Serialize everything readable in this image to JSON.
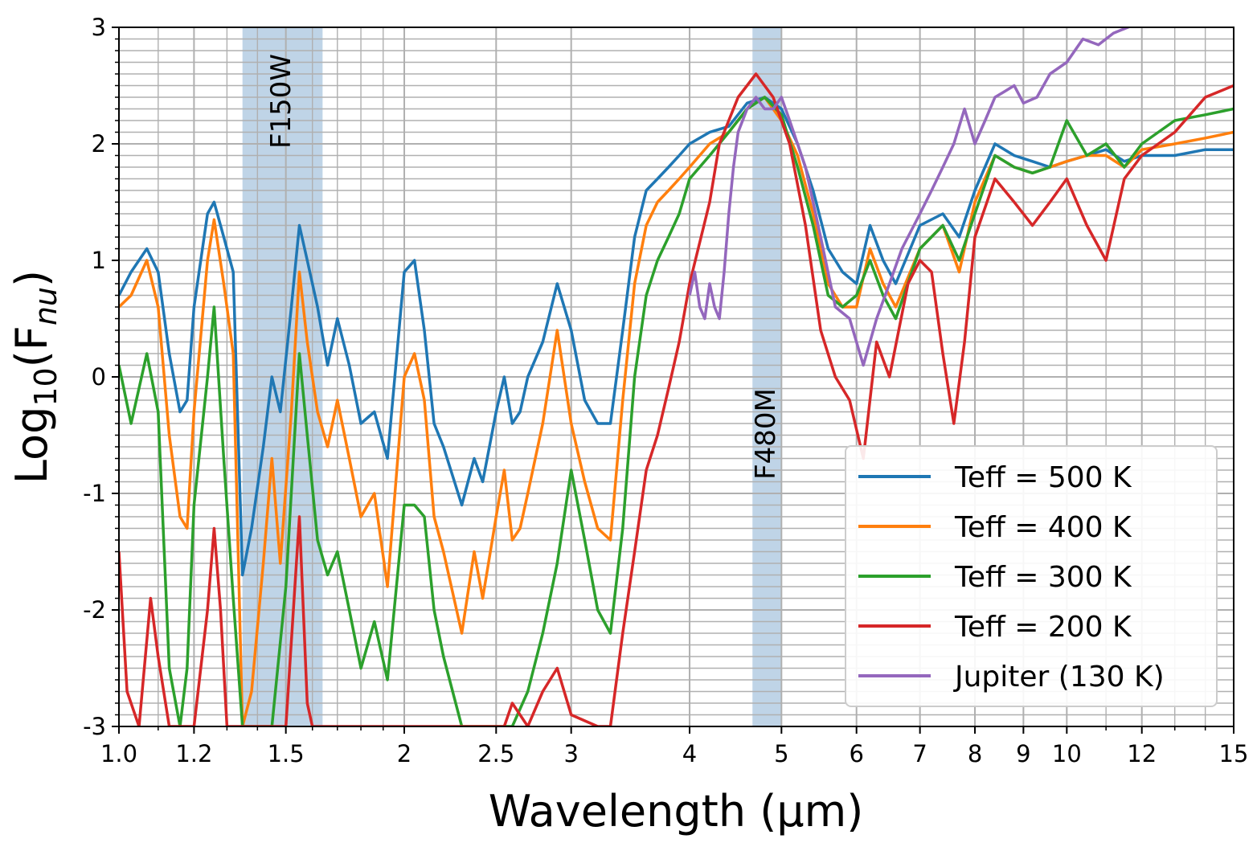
{
  "chart_data": {
    "type": "line",
    "xlabel": "Wavelength (μm)",
    "ylabel": "Log10(Fnu)",
    "x_scale": "log",
    "xlim": [
      1.0,
      15.0
    ],
    "ylim": [
      -3,
      3
    ],
    "grid": true,
    "x_ticks": [
      {
        "value": 1.0,
        "label": "1.0"
      },
      {
        "value": 1.2,
        "label": "1.2"
      },
      {
        "value": 1.5,
        "label": "1.5"
      },
      {
        "value": 2.0,
        "label": "2"
      },
      {
        "value": 2.5,
        "label": "2.5"
      },
      {
        "value": 3.0,
        "label": "3"
      },
      {
        "value": 4.0,
        "label": "4"
      },
      {
        "value": 5.0,
        "label": "5"
      },
      {
        "value": 6.0,
        "label": "6"
      },
      {
        "value": 7.0,
        "label": "7"
      },
      {
        "value": 8.0,
        "label": "8"
      },
      {
        "value": 9.0,
        "label": "9"
      },
      {
        "value": 10.0,
        "label": "10"
      },
      {
        "value": 12.0,
        "label": "12"
      },
      {
        "value": 15.0,
        "label": "15"
      }
    ],
    "y_ticks": [
      {
        "value": -3,
        "label": "-3"
      },
      {
        "value": -2,
        "label": "-2"
      },
      {
        "value": -1,
        "label": "-1"
      },
      {
        "value": 0,
        "label": "0"
      },
      {
        "value": 1,
        "label": "1"
      },
      {
        "value": 2,
        "label": "2"
      },
      {
        "value": 3,
        "label": "3"
      }
    ],
    "bands": [
      {
        "name": "F150W",
        "x_range": [
          1.35,
          1.64
        ],
        "color": "#a9c6df"
      },
      {
        "name": "F480M",
        "x_range": [
          4.66,
          5.0
        ],
        "color": "#a9c6df"
      }
    ],
    "legend_position": "lower-right",
    "series": [
      {
        "name": "Teff = 500 K",
        "color": "#1f77b4",
        "x": [
          1.0,
          1.03,
          1.07,
          1.1,
          1.13,
          1.16,
          1.18,
          1.2,
          1.24,
          1.26,
          1.29,
          1.32,
          1.35,
          1.38,
          1.42,
          1.45,
          1.48,
          1.52,
          1.55,
          1.58,
          1.62,
          1.66,
          1.7,
          1.75,
          1.8,
          1.86,
          1.92,
          2.0,
          2.05,
          2.1,
          2.15,
          2.2,
          2.3,
          2.37,
          2.42,
          2.5,
          2.55,
          2.6,
          2.65,
          2.7,
          2.8,
          2.9,
          3.0,
          3.1,
          3.2,
          3.3,
          3.4,
          3.5,
          3.6,
          3.7,
          3.8,
          3.9,
          4.0,
          4.2,
          4.4,
          4.6,
          4.8,
          5.0,
          5.2,
          5.4,
          5.6,
          5.8,
          6.0,
          6.2,
          6.4,
          6.6,
          7.0,
          7.4,
          7.7,
          8.0,
          8.4,
          8.8,
          9.2,
          9.6,
          10.0,
          10.5,
          11.0,
          11.5,
          12.0,
          13.0,
          14.0,
          15.0
        ],
        "y": [
          0.7,
          0.9,
          1.1,
          0.9,
          0.2,
          -0.3,
          -0.2,
          0.6,
          1.4,
          1.5,
          1.2,
          0.9,
          -1.7,
          -1.3,
          -0.6,
          0.0,
          -0.3,
          0.6,
          1.3,
          1.0,
          0.6,
          0.1,
          0.5,
          0.1,
          -0.4,
          -0.3,
          -0.7,
          0.9,
          1.0,
          0.4,
          -0.4,
          -0.6,
          -1.1,
          -0.7,
          -0.9,
          -0.3,
          0.0,
          -0.4,
          -0.3,
          0.0,
          0.3,
          0.8,
          0.4,
          -0.2,
          -0.4,
          -0.4,
          0.4,
          1.2,
          1.6,
          1.7,
          1.8,
          1.9,
          2.0,
          2.1,
          2.15,
          2.35,
          2.4,
          2.3,
          2.0,
          1.6,
          1.1,
          0.9,
          0.8,
          1.3,
          1.0,
          0.8,
          1.3,
          1.4,
          1.2,
          1.6,
          2.0,
          1.9,
          1.85,
          1.8,
          1.85,
          1.9,
          1.95,
          1.85,
          1.9,
          1.9,
          1.95,
          1.95
        ]
      },
      {
        "name": "Teff = 400 K",
        "color": "#ff7f0e",
        "x": [
          1.0,
          1.03,
          1.07,
          1.1,
          1.13,
          1.16,
          1.18,
          1.2,
          1.24,
          1.26,
          1.29,
          1.32,
          1.35,
          1.38,
          1.42,
          1.45,
          1.48,
          1.52,
          1.55,
          1.58,
          1.62,
          1.66,
          1.7,
          1.75,
          1.8,
          1.86,
          1.92,
          2.0,
          2.05,
          2.1,
          2.15,
          2.2,
          2.3,
          2.37,
          2.42,
          2.5,
          2.55,
          2.6,
          2.65,
          2.7,
          2.8,
          2.9,
          3.0,
          3.1,
          3.2,
          3.3,
          3.4,
          3.5,
          3.6,
          3.7,
          3.8,
          3.9,
          4.0,
          4.2,
          4.4,
          4.6,
          4.8,
          5.0,
          5.2,
          5.4,
          5.6,
          5.8,
          6.0,
          6.2,
          6.4,
          6.6,
          7.0,
          7.4,
          7.7,
          8.0,
          8.4,
          8.8,
          9.2,
          9.6,
          10.0,
          10.5,
          11.0,
          11.5,
          12.0,
          13.0,
          14.0,
          15.0
        ],
        "y": [
          0.6,
          0.7,
          1.0,
          0.6,
          -0.5,
          -1.2,
          -1.3,
          -0.3,
          1.0,
          1.35,
          0.8,
          0.2,
          -3.0,
          -2.7,
          -1.6,
          -0.7,
          -1.6,
          -0.3,
          0.9,
          0.3,
          -0.3,
          -0.6,
          -0.2,
          -0.7,
          -1.2,
          -1.0,
          -1.8,
          0.0,
          0.2,
          -0.2,
          -1.2,
          -1.5,
          -2.2,
          -1.5,
          -1.9,
          -1.2,
          -0.8,
          -1.4,
          -1.3,
          -1.0,
          -0.4,
          0.4,
          -0.4,
          -0.9,
          -1.3,
          -1.4,
          -0.2,
          0.8,
          1.3,
          1.5,
          1.6,
          1.7,
          1.8,
          2.0,
          2.1,
          2.3,
          2.4,
          2.2,
          1.9,
          1.4,
          0.8,
          0.6,
          0.6,
          1.1,
          0.8,
          0.6,
          1.1,
          1.3,
          0.9,
          1.5,
          1.9,
          1.8,
          1.75,
          1.8,
          1.85,
          1.9,
          1.9,
          1.8,
          1.95,
          2.0,
          2.05,
          2.1
        ]
      },
      {
        "name": "Teff = 300 K",
        "color": "#2ca02c",
        "x": [
          1.0,
          1.03,
          1.07,
          1.1,
          1.13,
          1.16,
          1.18,
          1.2,
          1.24,
          1.26,
          1.29,
          1.32,
          1.35,
          1.4,
          1.45,
          1.5,
          1.55,
          1.58,
          1.62,
          1.66,
          1.7,
          1.75,
          1.8,
          1.86,
          1.92,
          2.0,
          2.05,
          2.1,
          2.15,
          2.2,
          2.3,
          2.4,
          2.5,
          2.6,
          2.7,
          2.8,
          2.9,
          3.0,
          3.1,
          3.2,
          3.3,
          3.4,
          3.5,
          3.6,
          3.7,
          3.8,
          3.9,
          4.0,
          4.2,
          4.4,
          4.6,
          4.8,
          5.0,
          5.2,
          5.4,
          5.6,
          5.8,
          6.0,
          6.2,
          6.4,
          6.6,
          7.0,
          7.4,
          7.7,
          8.0,
          8.4,
          8.8,
          9.2,
          9.6,
          10.0,
          10.5,
          11.0,
          11.5,
          12.0,
          13.0,
          14.0,
          15.0
        ],
        "y": [
          0.1,
          -0.4,
          0.2,
          -0.3,
          -2.5,
          -3.0,
          -2.5,
          -1.1,
          0.0,
          0.6,
          -0.7,
          -1.9,
          -3.0,
          -3.0,
          -3.0,
          -1.8,
          0.2,
          -0.5,
          -1.4,
          -1.7,
          -1.5,
          -2.0,
          -2.5,
          -2.1,
          -2.6,
          -1.1,
          -1.1,
          -1.2,
          -2.0,
          -2.4,
          -3.0,
          -3.0,
          -3.0,
          -3.0,
          -2.7,
          -2.2,
          -1.6,
          -0.8,
          -1.4,
          -2.0,
          -2.2,
          -1.3,
          0.0,
          0.7,
          1.0,
          1.2,
          1.4,
          1.7,
          1.9,
          2.1,
          2.3,
          2.4,
          2.25,
          1.8,
          1.3,
          0.7,
          0.6,
          0.7,
          1.0,
          0.7,
          0.5,
          1.1,
          1.3,
          1.0,
          1.4,
          1.9,
          1.8,
          1.75,
          1.8,
          2.2,
          1.9,
          2.0,
          1.8,
          2.0,
          2.2,
          2.25,
          2.3
        ]
      },
      {
        "name": "Teff = 200 K",
        "color": "#d62728",
        "x": [
          1.0,
          1.02,
          1.05,
          1.08,
          1.1,
          1.13,
          1.2,
          1.24,
          1.26,
          1.28,
          1.3,
          1.4,
          1.5,
          1.55,
          1.58,
          1.6,
          1.65,
          2.4,
          2.55,
          2.6,
          2.7,
          2.8,
          2.9,
          3.0,
          3.2,
          3.3,
          3.4,
          3.5,
          3.6,
          3.7,
          3.8,
          3.9,
          4.0,
          4.2,
          4.3,
          4.5,
          4.7,
          4.9,
          5.1,
          5.3,
          5.5,
          5.7,
          5.9,
          6.1,
          6.3,
          6.5,
          6.8,
          7.0,
          7.2,
          7.4,
          7.6,
          7.8,
          8.0,
          8.4,
          8.8,
          9.2,
          9.6,
          10.0,
          10.5,
          11.0,
          11.5,
          12.0,
          13.0,
          14.0,
          15.0
        ],
        "y": [
          -1.5,
          -2.7,
          -3.0,
          -1.9,
          -2.4,
          -3.0,
          -3.0,
          -2.0,
          -1.3,
          -2.0,
          -3.0,
          -3.0,
          -3.0,
          -1.2,
          -2.8,
          -3.0,
          -3.0,
          -3.0,
          -3.0,
          -2.8,
          -3.0,
          -2.7,
          -2.5,
          -2.9,
          -3.0,
          -3.0,
          -2.2,
          -1.5,
          -0.8,
          -0.5,
          -0.1,
          0.3,
          0.8,
          1.5,
          2.0,
          2.4,
          2.6,
          2.4,
          2.0,
          1.3,
          0.4,
          0.0,
          -0.2,
          -0.7,
          0.3,
          0.0,
          0.8,
          1.0,
          0.9,
          0.2,
          -0.4,
          0.3,
          1.2,
          1.7,
          1.5,
          1.3,
          1.5,
          1.7,
          1.3,
          1.0,
          1.7,
          1.9,
          2.1,
          2.4,
          2.5
        ]
      },
      {
        "name": "Jupiter (130 K)",
        "color": "#9467bd",
        "x": [
          4.0,
          4.05,
          4.1,
          4.15,
          4.2,
          4.25,
          4.3,
          4.35,
          4.4,
          4.45,
          4.5,
          4.55,
          4.6,
          4.7,
          4.8,
          4.9,
          5.0,
          5.1,
          5.3,
          5.5,
          5.7,
          5.9,
          6.1,
          6.3,
          6.5,
          6.7,
          7.0,
          7.2,
          7.4,
          7.6,
          7.8,
          8.0,
          8.2,
          8.4,
          8.6,
          8.8,
          9.0,
          9.3,
          9.6,
          10.0,
          10.4,
          10.8,
          11.2,
          11.6,
          12.0
        ],
        "y": [
          0.7,
          0.9,
          0.6,
          0.5,
          0.8,
          0.6,
          0.5,
          0.9,
          1.4,
          1.8,
          2.1,
          2.2,
          2.3,
          2.4,
          2.3,
          2.3,
          2.4,
          2.2,
          1.8,
          1.2,
          0.6,
          0.5,
          0.1,
          0.5,
          0.8,
          1.1,
          1.4,
          1.6,
          1.8,
          2.0,
          2.3,
          2.0,
          2.2,
          2.4,
          2.45,
          2.5,
          2.35,
          2.4,
          2.6,
          2.7,
          2.9,
          2.85,
          2.95,
          3.0,
          3.05
        ]
      }
    ]
  }
}
